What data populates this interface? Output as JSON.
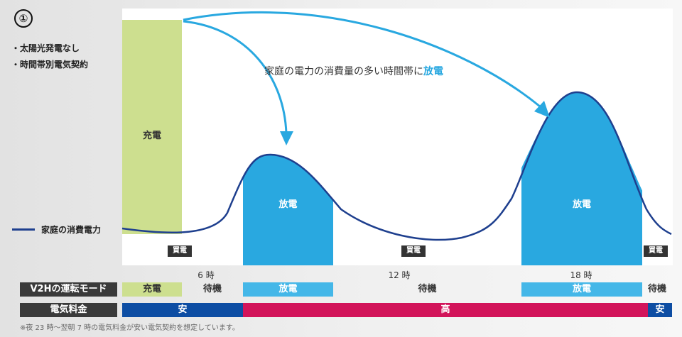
{
  "header": {
    "number": "①",
    "conditions": [
      "太陽光発電なし",
      "時間帯別電気契約"
    ]
  },
  "legend": {
    "label": "家庭の消費電力"
  },
  "arrow_caption": {
    "text": "家庭の電力の消費量の多い時間帯に",
    "highlight": "放電"
  },
  "chart": {
    "charge_label": "充電",
    "discharge_label": "放電",
    "buy_label": "買電"
  },
  "hours": [
    "6 時",
    "12 時",
    "18 時"
  ],
  "rows": {
    "mode_header": "V2Hの運転モード",
    "rate_header": "電気料金",
    "mode": {
      "charge": "充電",
      "standby1": "待機",
      "discharge1": "放電",
      "standby2": "待機",
      "discharge2": "放電",
      "standby3": "待機"
    },
    "rate": {
      "cheap1": "安",
      "expensive": "高",
      "cheap2": "安"
    }
  },
  "footnote": "※夜 23 時〜翌朝 7 時の電気料金が安い電気契約を想定しています。",
  "colors": {
    "charge": "#cddf8f",
    "discharge": "#29a8e0",
    "discharge_light": "#44b7e8",
    "consumption_line": "#1e3f8e",
    "cheap": "#0d4da3",
    "expensive": "#d2145a"
  }
}
